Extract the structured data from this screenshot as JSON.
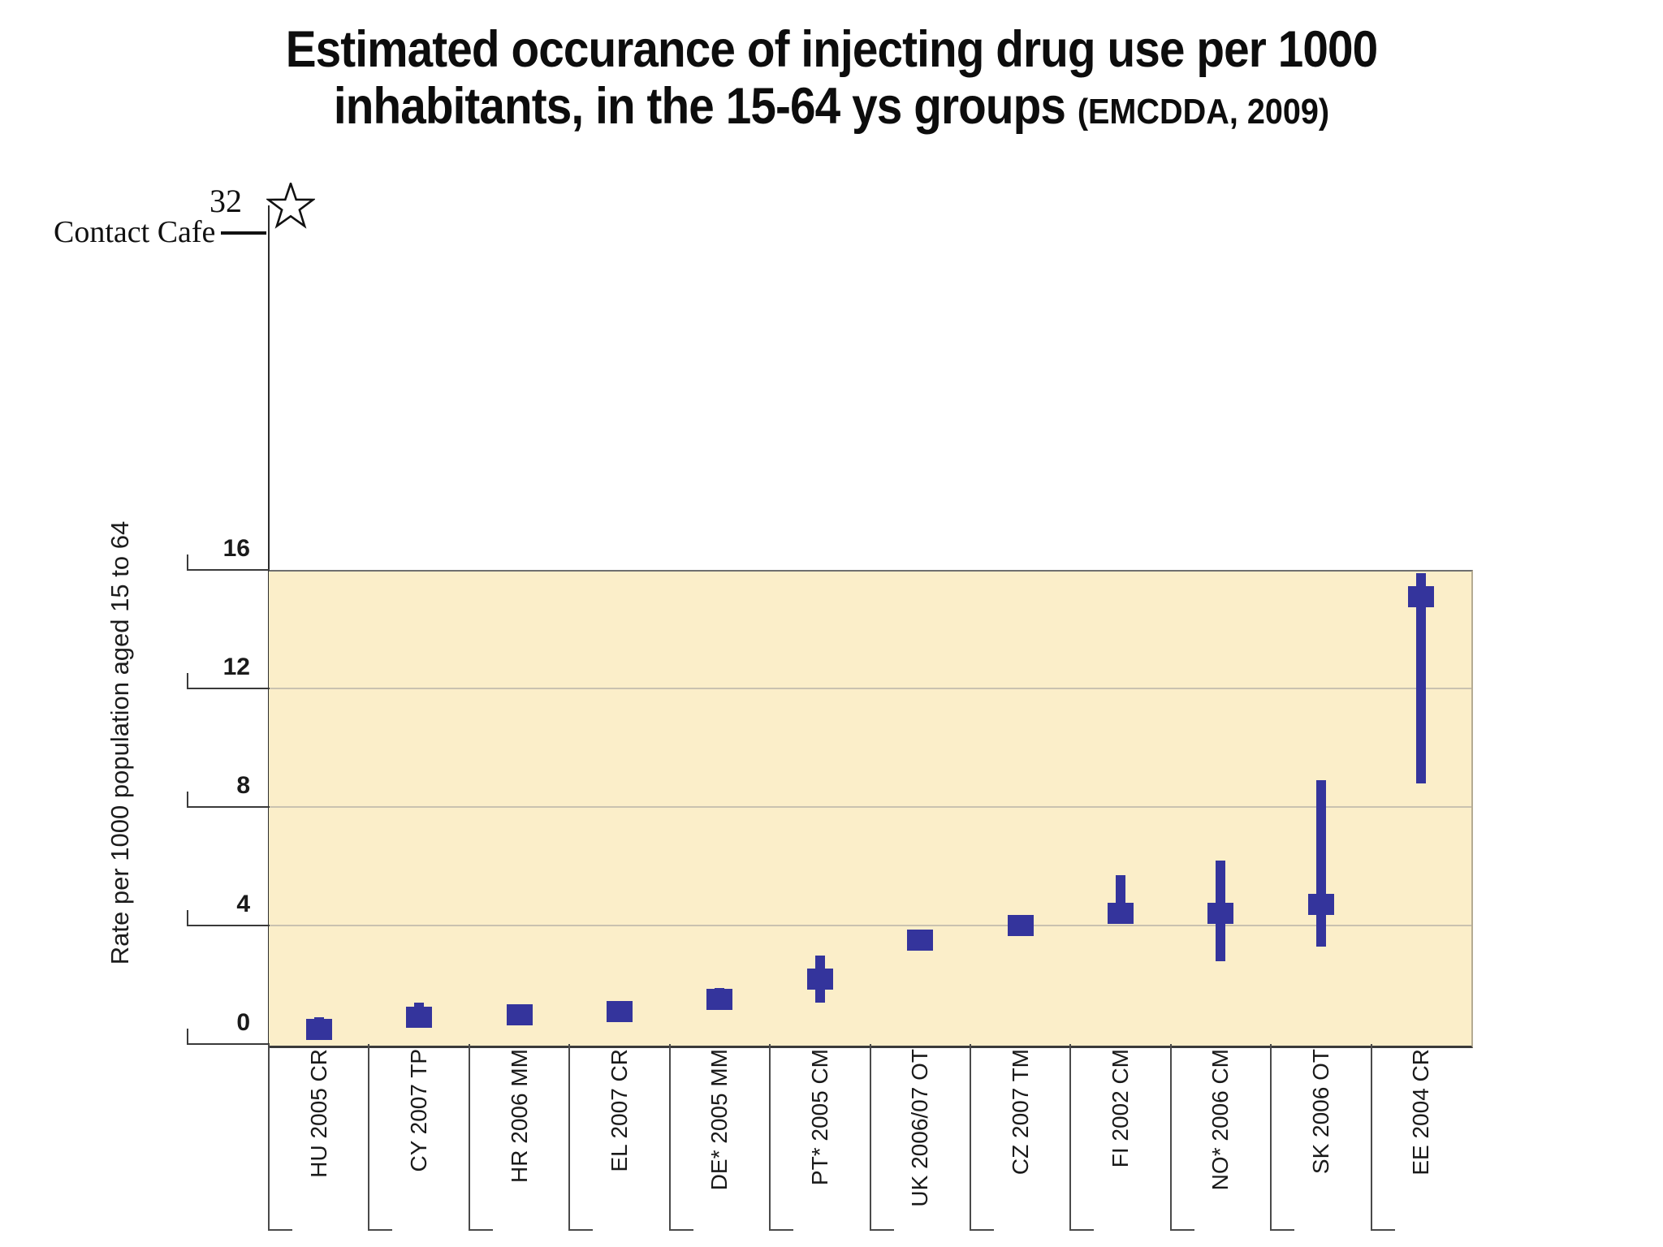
{
  "title": {
    "line1": "Estimated occurance of injecting drug use per 1000",
    "line2": "inhabitants, in the 15-64 ys groups",
    "source": "(EMCDDA, 2009)"
  },
  "annotation": {
    "label": "Contact Cafe",
    "value_label": "32",
    "value": 32,
    "marker": "star-icon"
  },
  "chart_data": {
    "type": "scatter",
    "subtype": "point-with-range-bars",
    "title": "Estimated occurance of injecting drug use per 1000 inhabitants, in the 15-64 ys groups (EMCDDA, 2009)",
    "xlabel": "",
    "ylabel": "Rate per 1000 population aged 15 to 64",
    "ylim": [
      0,
      16
    ],
    "yticks": [
      0,
      4,
      8,
      12,
      16
    ],
    "extra_axis_value": 32,
    "grid": true,
    "legend_position": "none",
    "categories": [
      "HU 2005 CR",
      "CY 2007 TP",
      "HR 2006 MM",
      "EL 2007 CR",
      "DE* 2005 MM",
      "PT* 2005 CM",
      "UK 2006/07 OT",
      "CZ 2007 TM",
      "FI 2002 CM",
      "NO* 2006 CM",
      "SK 2006 OT",
      "EE 2004 CR"
    ],
    "points": [
      {
        "label": "HU 2005 CR",
        "value": 0.5,
        "low": 0.2,
        "high": 0.9
      },
      {
        "label": "CY 2007 TP",
        "value": 0.9,
        "low": 0.6,
        "high": 1.4
      },
      {
        "label": "HR 2006 MM",
        "value": 1.0,
        "low": 0.7,
        "high": 1.3
      },
      {
        "label": "EL 2007 CR",
        "value": 1.1,
        "low": 0.8,
        "high": 1.4
      },
      {
        "label": "DE* 2005 MM",
        "value": 1.5,
        "low": 1.2,
        "high": 1.9
      },
      {
        "label": "PT* 2005 CM",
        "value": 2.2,
        "low": 1.4,
        "high": 3.0
      },
      {
        "label": "UK 2006/07 OT",
        "value": 3.5,
        "low": 3.3,
        "high": 3.7
      },
      {
        "label": "CZ 2007 TM",
        "value": 4.0,
        "low": 3.8,
        "high": 4.2
      },
      {
        "label": "FI 2002 CM",
        "value": 4.4,
        "low": 4.1,
        "high": 5.7
      },
      {
        "label": "NO* 2006 CM",
        "value": 4.4,
        "low": 2.8,
        "high": 6.2
      },
      {
        "label": "SK 2006 OT",
        "value": 4.7,
        "low": 3.3,
        "high": 8.9
      },
      {
        "label": "EE 2004 CR",
        "value": 15.1,
        "low": 8.8,
        "high": 15.9
      }
    ],
    "annotation": {
      "label": "Contact Cafe",
      "value": 32,
      "marker": "star"
    },
    "colors": {
      "bar": "#34349C",
      "plot_background": "#FBEEC9",
      "gridline": "#C9C2B0",
      "axis": "#3A3A3A"
    }
  }
}
